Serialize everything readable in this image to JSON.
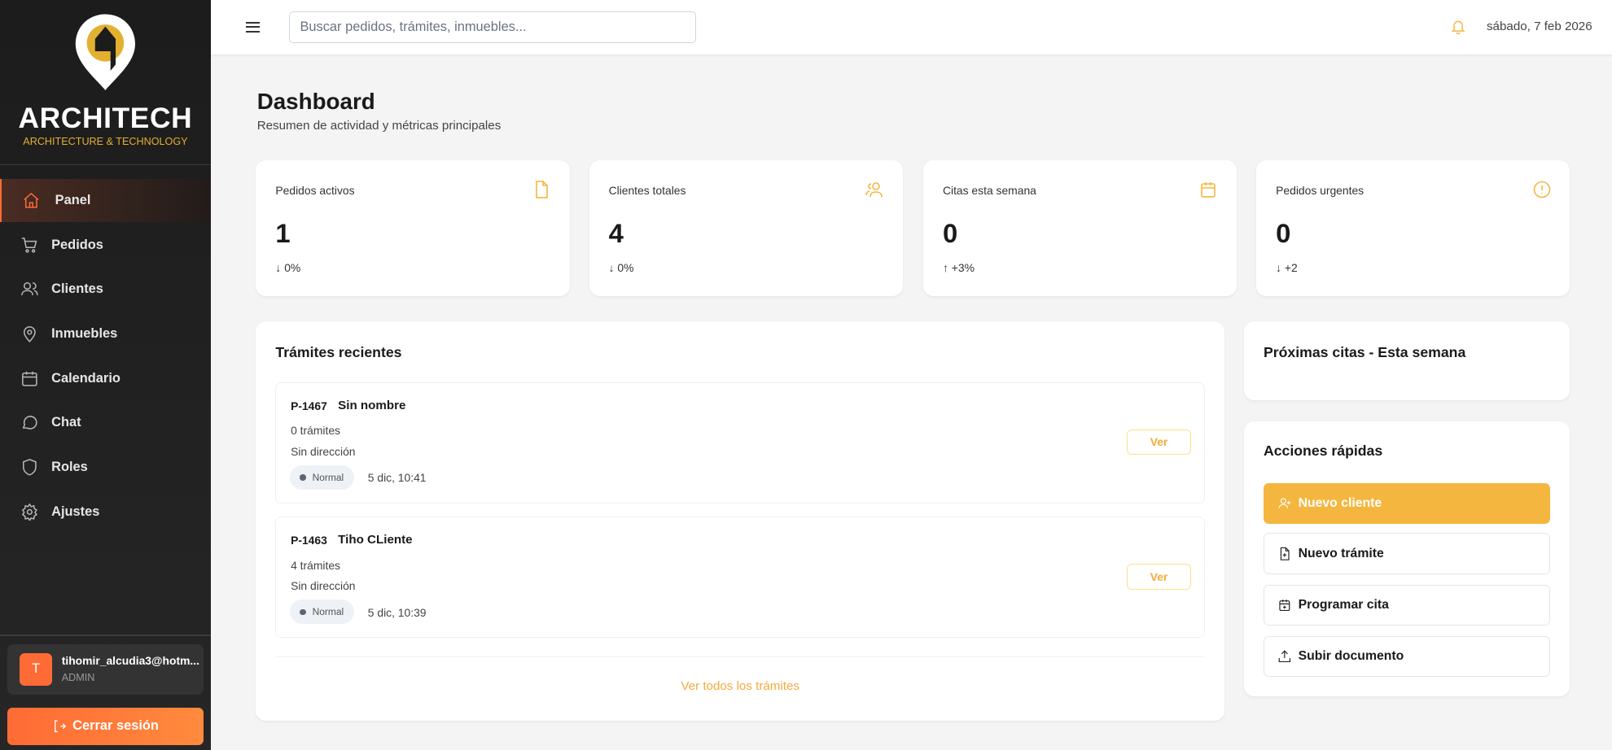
{
  "brand": {
    "name": "ARCHITECH",
    "tagline": "ARCHITECTURE & TECHNOLOGY",
    "accent": "#f5b63f",
    "orange": "#ff6b35"
  },
  "sidebar": {
    "items": [
      {
        "label": "Panel",
        "icon": "home-icon",
        "active": true
      },
      {
        "label": "Pedidos",
        "icon": "cart-icon"
      },
      {
        "label": "Clientes",
        "icon": "users-icon"
      },
      {
        "label": "Inmuebles",
        "icon": "map-pin-icon"
      },
      {
        "label": "Calendario",
        "icon": "calendar-icon"
      },
      {
        "label": "Chat",
        "icon": "chat-icon"
      },
      {
        "label": "Roles",
        "icon": "shield-icon"
      },
      {
        "label": "Ajustes",
        "icon": "gear-icon"
      }
    ]
  },
  "user": {
    "initial": "T",
    "email": "tihomir_alcudia3@hotm...",
    "role": "ADMIN"
  },
  "logout_label": "Cerrar sesión",
  "header": {
    "search_placeholder": "Buscar pedidos, trámites, inmuebles...",
    "date": "sábado, 7 feb 2026"
  },
  "page": {
    "title": "Dashboard",
    "subtitle": "Resumen de actividad y métricas principales"
  },
  "stats": [
    {
      "label": "Pedidos activos",
      "value": "1",
      "change": "↓ 0%",
      "icon": "file-icon"
    },
    {
      "label": "Clientes totales",
      "value": "4",
      "change": "↓ 0%",
      "icon": "users-icon"
    },
    {
      "label": "Citas esta semana",
      "value": "0",
      "change": "↑ +3%",
      "icon": "calendar-icon"
    },
    {
      "label": "Pedidos urgentes",
      "value": "0",
      "change": "↓ +2",
      "icon": "alert-circle-icon"
    }
  ],
  "tramites": {
    "title": "Trámites recientes",
    "items": [
      {
        "code": "P-1467",
        "name": "Sin nombre",
        "count": "0 trámites",
        "address": "Sin dirección",
        "priority": "Normal",
        "time": "5 dic, 10:41",
        "action": "Ver"
      },
      {
        "code": "P-1463",
        "name": "Tiho CLiente",
        "count": "4 trámites",
        "address": "Sin dirección",
        "priority": "Normal",
        "time": "5 dic, 10:39",
        "action": "Ver"
      }
    ],
    "view_all": "Ver todos los trámites"
  },
  "citas": {
    "title": "Próximas citas - Esta semana"
  },
  "acciones": {
    "title": "Acciones rápidas",
    "buttons": [
      {
        "label": "Nuevo cliente",
        "icon": "user-plus-icon"
      },
      {
        "label": "Nuevo trámite",
        "icon": "file-plus-icon"
      },
      {
        "label": "Programar cita",
        "icon": "calendar-plus-icon"
      },
      {
        "label": "Subir documento",
        "icon": "upload-icon"
      }
    ]
  }
}
